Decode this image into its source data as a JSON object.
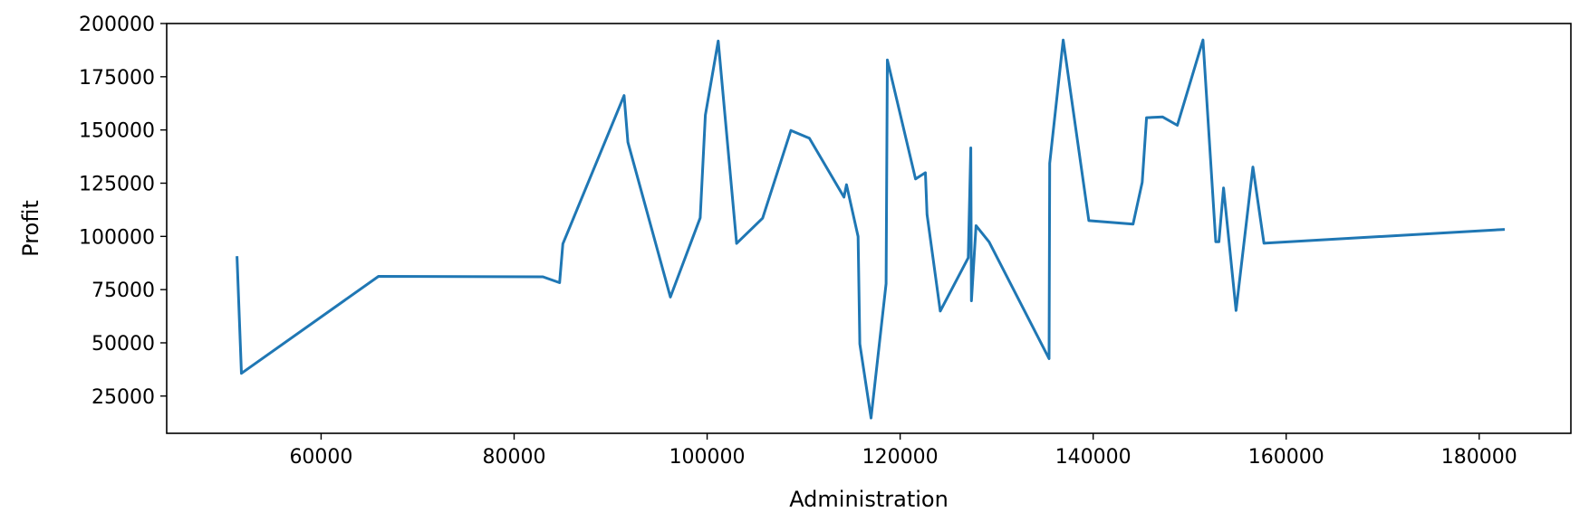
{
  "chart_data": {
    "type": "line",
    "title": "",
    "xlabel": "Administration",
    "ylabel": "Profit",
    "xlim": [
      44000,
      189500
    ],
    "ylim": [
      7500,
      200000
    ],
    "xticks": [
      60000,
      80000,
      100000,
      120000,
      140000,
      160000,
      180000
    ],
    "yticks": [
      25000,
      50000,
      75000,
      100000,
      125000,
      150000,
      175000,
      200000
    ],
    "grid": false,
    "line_color": "#1f77b4",
    "series": [
      {
        "x": [
          51283,
          51743,
          65948,
          82982,
          84711,
          85047,
          91391,
          91791,
          96189,
          99281,
          99814,
          101146,
          103057,
          105751,
          108679,
          110594,
          114175,
          114439,
          115641,
          115816,
          116984,
          118546,
          118672,
          121597,
          122616,
          122783,
          124155,
          127056,
          127320,
          127382,
          127865,
          129219,
          135427,
          135495,
          136898,
          139553,
          144136,
          145077,
          145530,
          147198,
          148719,
          151378,
          152701,
          153032,
          153514,
          154806,
          156548,
          157694,
          182646
        ],
        "y": [
          90708,
          35673,
          81229,
          81005,
          78240,
          96479,
          166187,
          144259,
          71498,
          108734,
          156991,
          191792,
          96712,
          108552,
          149760,
          146122,
          118474,
          124267,
          99938,
          49491,
          14681,
          77798,
          182902,
          126993,
          129917,
          110352,
          64926,
          90000,
          141586,
          69759,
          105008,
          97427,
          42560,
          134307,
          192262,
          107404,
          105733,
          125370,
          155753,
          156123,
          152211,
          192262,
          97484,
          97484,
          122777,
          65200,
          132602,
          96778,
          103282
        ]
      }
    ]
  }
}
